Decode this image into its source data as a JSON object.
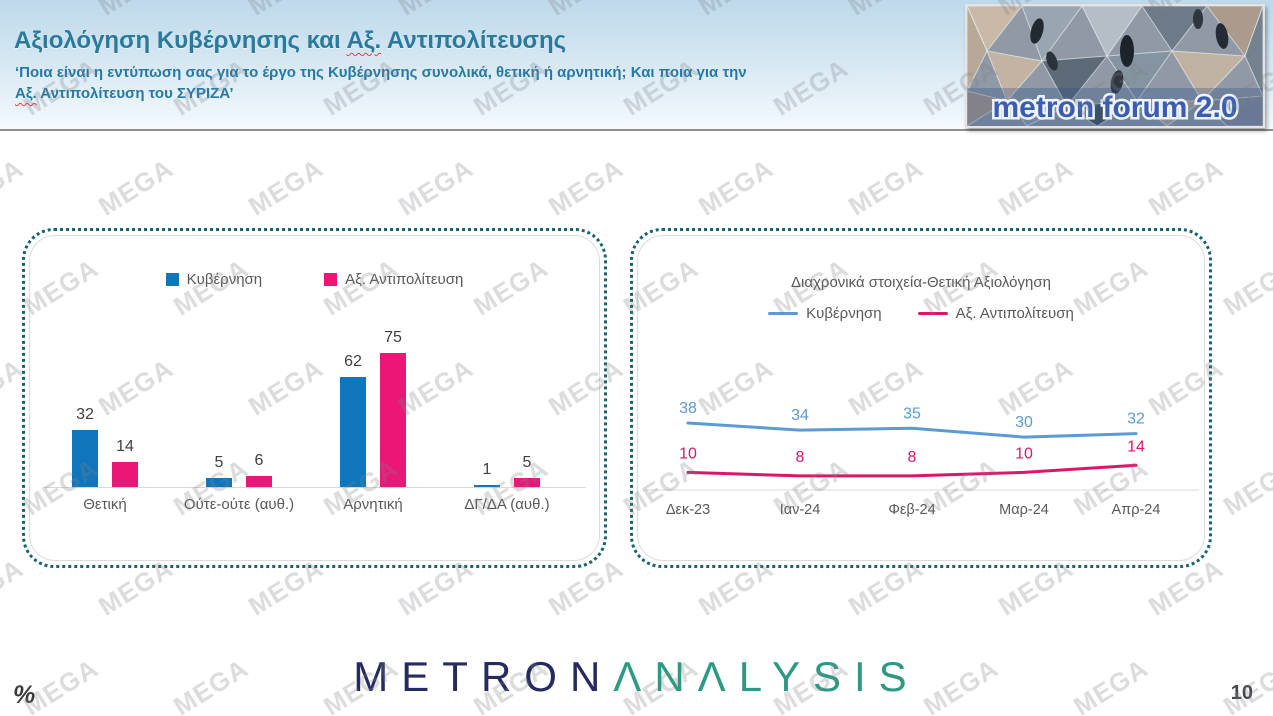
{
  "header": {
    "title": {
      "pre": "Αξιολόγηση Κυβέρνησης και ",
      "marked": "Αξ.",
      "post": " Αντιπολίτευσης"
    },
    "subtitle": {
      "line1": "‘Ποια είναι η εντύπωση σας για το έργο της Κυβέρνησης συνολικά, θετική ή αρνητική; Και ποια για την",
      "line2_marked": "Αξ.",
      "line2_post": " Αντιπολίτευση του ΣΥΡΙΖΑ’"
    },
    "logo_text": "metron forum 2.0"
  },
  "watermark": {
    "text": "MEGA"
  },
  "chart_data": [
    {
      "type": "bar",
      "title": "",
      "categories": [
        "Θετική",
        "Ούτε-ούτε (αυθ.)",
        "Αρνητική",
        "ΔΓ/ΔΑ (αυθ.)"
      ],
      "series": [
        {
          "name": "Κυβέρνηση",
          "color": "#0F76BC",
          "values": [
            32,
            5,
            62,
            1
          ]
        },
        {
          "name": "Αξ. Αντιπολίτευση",
          "color": "#EB1678",
          "values": [
            14,
            6,
            75,
            5
          ]
        }
      ],
      "ylim": [
        0,
        80
      ],
      "grid": false,
      "legend_position": "top",
      "value_labels": true
    },
    {
      "type": "line",
      "title": "Διαχρονικά στοιχεία-Θετική Αξιολόγηση",
      "categories": [
        "Δεκ-23",
        "Ιαν-24",
        "Φεβ-24",
        "Μαρ-24",
        "Απρ-24"
      ],
      "series": [
        {
          "name": "Κυβέρνηση",
          "color": "#5B9BD5",
          "values": [
            38,
            34,
            35,
            30,
            32
          ]
        },
        {
          "name": "Αξ. Αντιπολίτευση",
          "color": "#DC1768",
          "values": [
            10,
            8,
            8,
            10,
            14
          ]
        }
      ],
      "ylim": [
        0,
        45
      ],
      "grid": false,
      "legend_position": "top",
      "value_labels": true
    }
  ],
  "footer": {
    "percent_label": "%",
    "brand": {
      "part1": "METRON",
      "part2": "ΛNΛLYSIS"
    },
    "page_number": "10"
  }
}
